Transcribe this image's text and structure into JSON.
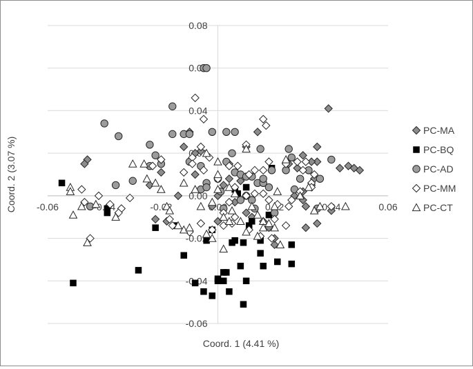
{
  "chart_data": {
    "type": "scatter",
    "title": "",
    "xlabel": "Coord. 1 (4.41 %)",
    "ylabel": "Coord. 2 (3.07 %)",
    "xlim": [
      -0.06,
      0.06
    ],
    "ylim": [
      -0.06,
      0.08
    ],
    "xticks": [
      -0.06,
      -0.04,
      -0.02,
      0.0,
      0.02,
      0.04,
      0.06
    ],
    "yticks": [
      -0.06,
      -0.04,
      -0.02,
      0.0,
      0.02,
      0.04,
      0.06,
      0.08
    ],
    "x_tick_labels": [
      "-0.06",
      "-0.04",
      "-0.02",
      "0.00",
      "0.02",
      "0.04",
      "0.06"
    ],
    "y_tick_labels": [
      "-0.06",
      "-0.04",
      "-0.02",
      "0.00",
      "0.02",
      "0.04",
      "0.06",
      "0.08"
    ],
    "grid": "horizontal",
    "legend_position": "right",
    "series": [
      {
        "name": "PC-MA",
        "marker": "diamond-gray",
        "points": [
          [
            0.039,
            0.041
          ],
          [
            0.035,
            0.023
          ],
          [
            0.035,
            0.016
          ],
          [
            0.033,
            0.016
          ],
          [
            0.03,
            0.019
          ],
          [
            0.028,
            0.013
          ],
          [
            0.034,
            0.008
          ],
          [
            0.033,
            0.005
          ],
          [
            0.03,
            0.002
          ],
          [
            0.03,
            -0.002
          ],
          [
            0.031,
            -0.005
          ],
          [
            0.04,
            -0.007
          ],
          [
            0.043,
            0.013
          ],
          [
            0.046,
            0.014
          ],
          [
            0.048,
            0.013
          ],
          [
            0.05,
            0.012
          ],
          [
            0.035,
            -0.013
          ],
          [
            0.031,
            -0.015
          ],
          [
            0.02,
            -0.023
          ],
          [
            0.02,
            -0.02
          ],
          [
            0.018,
            -0.015
          ],
          [
            0.016,
            -0.012
          ],
          [
            0.012,
            -0.01
          ],
          [
            0.01,
            -0.008
          ],
          [
            0.014,
            0.03
          ],
          [
            0.01,
            0.023
          ],
          [
            0.004,
            0.015
          ],
          [
            0.008,
            0.007
          ],
          [
            0.002,
            0.005
          ],
          [
            0.0,
            0.0
          ],
          [
            -0.006,
            0.021
          ],
          [
            -0.01,
            0.03
          ],
          [
            -0.02,
            0.011
          ],
          [
            -0.024,
            0.005
          ],
          [
            -0.022,
            -0.011
          ],
          [
            -0.018,
            -0.012
          ],
          [
            -0.012,
            0.023
          ],
          [
            -0.008,
            0.02
          ],
          [
            -0.046,
            0.017
          ],
          [
            -0.047,
            0.015
          ],
          [
            -0.002,
            -0.005
          ],
          [
            0.0,
            -0.012
          ],
          [
            -0.008,
            0.01
          ],
          [
            0.004,
            0.008
          ],
          [
            0.025,
            0.015
          ],
          [
            0.027,
            0.0
          ],
          [
            0.006,
            -0.003
          ],
          [
            -0.014,
            0.0
          ]
        ]
      },
      {
        "name": "PC-BQ",
        "marker": "square-black",
        "points": [
          [
            -0.055,
            0.006
          ],
          [
            -0.051,
            -0.041
          ],
          [
            -0.039,
            -0.008
          ],
          [
            -0.039,
            -0.006
          ],
          [
            -0.028,
            -0.035
          ],
          [
            -0.022,
            -0.015
          ],
          [
            -0.015,
            -0.014
          ],
          [
            -0.012,
            -0.028
          ],
          [
            -0.008,
            -0.041
          ],
          [
            -0.005,
            -0.045
          ],
          [
            -0.004,
            -0.021
          ],
          [
            -0.002,
            -0.047
          ],
          [
            0.0,
            -0.039
          ],
          [
            0.0,
            -0.04
          ],
          [
            0.002,
            -0.04
          ],
          [
            0.002,
            -0.036
          ],
          [
            0.003,
            -0.036
          ],
          [
            0.004,
            -0.045
          ],
          [
            0.005,
            -0.022
          ],
          [
            0.006,
            -0.021
          ],
          [
            0.007,
            0.001
          ],
          [
            0.008,
            -0.033
          ],
          [
            0.009,
            -0.022
          ],
          [
            0.009,
            -0.051
          ],
          [
            0.01,
            -0.04
          ],
          [
            0.011,
            -0.014
          ],
          [
            0.012,
            -0.012
          ],
          [
            0.015,
            -0.021
          ],
          [
            0.015,
            -0.027
          ],
          [
            0.016,
            -0.033
          ],
          [
            0.018,
            -0.009
          ],
          [
            0.021,
            -0.031
          ],
          [
            0.019,
            0.013
          ],
          [
            0.026,
            -0.032
          ],
          [
            0.026,
            -0.023
          ],
          [
            0.006,
            0.003
          ],
          [
            -0.002,
            -0.016
          ],
          [
            0.01,
            0.004
          ]
        ]
      },
      {
        "name": "PC-AD",
        "marker": "circle-gray",
        "points": [
          [
            -0.005,
            0.06
          ],
          [
            -0.004,
            0.06
          ],
          [
            -0.04,
            0.034
          ],
          [
            -0.035,
            0.028
          ],
          [
            -0.024,
            0.024
          ],
          [
            -0.024,
            0.014
          ],
          [
            -0.02,
            0.015
          ],
          [
            -0.022,
            0.019
          ],
          [
            -0.016,
            0.042
          ],
          [
            -0.016,
            0.029
          ],
          [
            -0.012,
            0.029
          ],
          [
            -0.01,
            0.029
          ],
          [
            -0.01,
            0.016
          ],
          [
            -0.006,
            0.014
          ],
          [
            -0.002,
            0.03
          ],
          [
            -0.006,
            0.003
          ],
          [
            -0.004,
            0.006
          ],
          [
            -0.004,
            0.004
          ],
          [
            0.003,
            0.03
          ],
          [
            0.003,
            0.016
          ],
          [
            0.006,
            0.03
          ],
          [
            0.006,
            0.011
          ],
          [
            0.008,
            0.01
          ],
          [
            0.01,
            0.009
          ],
          [
            0.012,
            0.009
          ],
          [
            0.014,
            0.006
          ],
          [
            0.016,
            0.006
          ],
          [
            0.018,
            0.004
          ],
          [
            0.019,
            0.012
          ],
          [
            0.024,
            0.012
          ],
          [
            0.026,
            0.018
          ],
          [
            0.029,
            0.008
          ],
          [
            0.032,
            0.012
          ],
          [
            0.036,
            0.008
          ],
          [
            0.04,
            0.017
          ],
          [
            0.025,
            0.022
          ],
          [
            0.015,
            0.022
          ],
          [
            0.005,
            0.02
          ],
          [
            0.016,
            0.008
          ],
          [
            0.012,
            -0.002
          ],
          [
            0.027,
            0.003
          ],
          [
            0.002,
            -0.006
          ],
          [
            0.01,
            0.0
          ],
          [
            0.0,
            0.008
          ],
          [
            0.001,
            0.002
          ],
          [
            -0.03,
            0.007
          ],
          [
            -0.036,
            0.005
          ],
          [
            -0.045,
            -0.005
          ],
          [
            0.008,
            -0.002
          ],
          [
            0.013,
            -0.006
          ],
          [
            0.02,
            -0.008
          ],
          [
            0.035,
            -0.006
          ]
        ]
      },
      {
        "name": "PC-MM",
        "marker": "diamond-white",
        "points": [
          [
            -0.008,
            0.046
          ],
          [
            -0.005,
            0.036
          ],
          [
            0.016,
            0.036
          ],
          [
            0.017,
            0.033
          ],
          [
            0.01,
            0.024
          ],
          [
            -0.006,
            0.023
          ],
          [
            -0.009,
            0.018
          ],
          [
            -0.003,
            0.018
          ],
          [
            -0.005,
            0.012
          ],
          [
            -0.009,
            0.015
          ],
          [
            -0.012,
            0.011
          ],
          [
            0.004,
            0.014
          ],
          [
            0.007,
            0.014
          ],
          [
            0.011,
            0.01
          ],
          [
            0.013,
            0.012
          ],
          [
            0.016,
            0.012
          ],
          [
            0.018,
            0.016
          ],
          [
            0.024,
            0.015
          ],
          [
            0.028,
            0.016
          ],
          [
            0.031,
            0.016
          ],
          [
            0.03,
            0.012
          ],
          [
            0.034,
            0.01
          ],
          [
            0.033,
            0.006
          ],
          [
            0.033,
            0.004
          ],
          [
            0.029,
            0.002
          ],
          [
            0.026,
            -0.002
          ],
          [
            0.025,
            -0.005
          ],
          [
            0.021,
            -0.004
          ],
          [
            0.018,
            -0.002
          ],
          [
            0.016,
            0.001
          ],
          [
            0.013,
            0.001
          ],
          [
            0.01,
            0.0
          ],
          [
            0.006,
            0.004
          ],
          [
            0.004,
            -0.003
          ],
          [
            0.002,
            -0.008
          ],
          [
            -0.002,
            -0.016
          ],
          [
            -0.006,
            -0.013
          ],
          [
            -0.01,
            -0.017
          ],
          [
            0.005,
            -0.013
          ],
          [
            0.011,
            -0.016
          ],
          [
            0.015,
            -0.019
          ],
          [
            0.019,
            -0.02
          ],
          [
            0.02,
            -0.011
          ],
          [
            0.024,
            -0.014
          ],
          [
            -0.031,
            -0.001
          ],
          [
            -0.034,
            -0.006
          ],
          [
            -0.035,
            -0.008
          ],
          [
            -0.038,
            -0.004
          ],
          [
            -0.042,
            0.0
          ],
          [
            -0.047,
            -0.003
          ],
          [
            -0.045,
            -0.02
          ],
          [
            -0.048,
            0.003
          ],
          [
            -0.023,
            0.014
          ],
          [
            -0.02,
            0.017
          ],
          [
            -0.017,
            -0.011
          ],
          [
            -0.016,
            -0.014
          ],
          [
            0.04,
            -0.005
          ],
          [
            0.0,
            0.008
          ],
          [
            0.002,
            -0.014
          ],
          [
            0.006,
            -0.01
          ]
        ]
      },
      {
        "name": "PC-CT",
        "marker": "triangle-white",
        "points": [
          [
            -0.052,
            0.004
          ],
          [
            -0.052,
            0.002
          ],
          [
            -0.051,
            -0.009
          ],
          [
            -0.048,
            -0.005
          ],
          [
            -0.046,
            -0.022
          ],
          [
            -0.043,
            -0.004
          ],
          [
            -0.036,
            -0.01
          ],
          [
            -0.03,
            0.015
          ],
          [
            -0.026,
            0.015
          ],
          [
            -0.025,
            0.008
          ],
          [
            -0.022,
            0.006
          ],
          [
            -0.02,
            0.003
          ],
          [
            -0.018,
            -0.005
          ],
          [
            -0.017,
            -0.007
          ],
          [
            -0.014,
            -0.014
          ],
          [
            -0.012,
            -0.016
          ],
          [
            -0.01,
            -0.015
          ],
          [
            -0.012,
            0.006
          ],
          [
            -0.008,
            0.003
          ],
          [
            -0.006,
            -0.005
          ],
          [
            -0.004,
            0.02
          ],
          [
            -0.002,
            -0.003
          ],
          [
            0.0,
            0.016
          ],
          [
            0.0,
            0.003
          ],
          [
            0.002,
            -0.01
          ],
          [
            0.004,
            -0.012
          ],
          [
            0.005,
            -0.007
          ],
          [
            0.006,
            0.001
          ],
          [
            0.008,
            -0.012
          ],
          [
            0.01,
            0.022
          ],
          [
            0.012,
            -0.005
          ],
          [
            0.014,
            -0.009
          ],
          [
            0.016,
            -0.012
          ],
          [
            0.018,
            -0.013
          ],
          [
            0.02,
            -0.015
          ],
          [
            0.02,
            -0.005
          ],
          [
            0.021,
            0.002
          ],
          [
            0.024,
            0.017
          ],
          [
            0.029,
            0.0
          ],
          [
            0.032,
            0.004
          ],
          [
            0.034,
            -0.007
          ],
          [
            0.036,
            -0.005
          ],
          [
            0.045,
            -0.005
          ],
          [
            0.002,
            -0.025
          ],
          [
            0.01,
            -0.017
          ],
          [
            0.014,
            -0.019
          ],
          [
            0.016,
            -0.015
          ],
          [
            -0.002,
            -0.02
          ],
          [
            0.0,
            0.01
          ],
          [
            0.004,
            0.004
          ],
          [
            -0.004,
            -0.018
          ],
          [
            0.022,
            -0.023
          ]
        ]
      }
    ]
  }
}
